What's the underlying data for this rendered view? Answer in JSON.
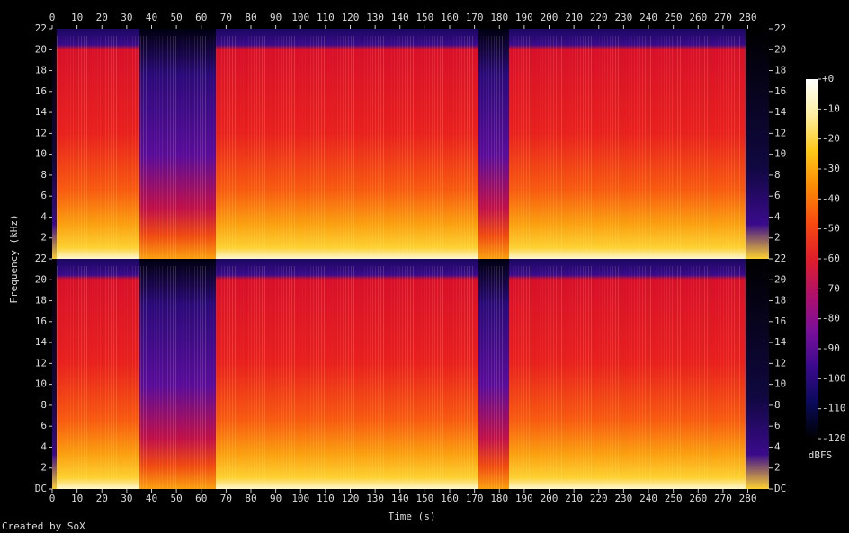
{
  "chart_data": {
    "type": "spectrogram",
    "x_label": "Time (s)",
    "y_label": "Frequency (kHz)",
    "credit": "Created by SoX",
    "channels": 2,
    "xlim": [
      0,
      288.5
    ],
    "xticks": [
      0,
      10,
      20,
      30,
      40,
      50,
      60,
      70,
      80,
      90,
      100,
      110,
      120,
      130,
      140,
      150,
      160,
      170,
      180,
      190,
      200,
      210,
      220,
      230,
      240,
      250,
      260,
      270,
      280
    ],
    "ylim": [
      0,
      22
    ],
    "yticks": [
      {
        "value": 0,
        "label": "DC"
      },
      2,
      4,
      6,
      8,
      10,
      12,
      14,
      16,
      18,
      20,
      22
    ],
    "colorbar": {
      "label": "dBFS",
      "lim": [
        -120,
        0
      ],
      "ticks": [
        {
          "value": 0,
          "label": "+0"
        },
        -10,
        -20,
        -30,
        -40,
        -50,
        -60,
        -70,
        -80,
        -90,
        -100,
        -110,
        -120
      ],
      "colors": [
        "#000000",
        "#0a0a5a",
        "#3a0a8c",
        "#7a0f9a",
        "#b0106a",
        "#e01e2a",
        "#f84a10",
        "#fb8a05",
        "#fdc818",
        "#fff0a0",
        "#ffffff"
      ]
    }
  }
}
